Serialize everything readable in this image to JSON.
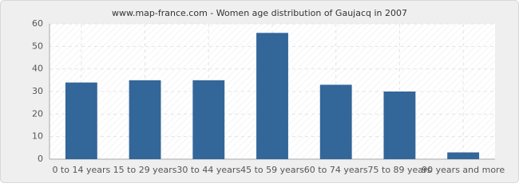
{
  "chart_data": {
    "type": "bar",
    "title": "www.map-france.com - Women age distribution of Gaujacq in 2007",
    "categories": [
      "0 to 14 years",
      "15 to 29 years",
      "30 to 44 years",
      "45 to 59 years",
      "60 to 74 years",
      "75 to 89 years",
      "90 years and more"
    ],
    "values": [
      34,
      35,
      35,
      56,
      33,
      30,
      3
    ],
    "color": "#336699",
    "ylim": [
      0,
      60
    ],
    "yticks": [
      0,
      10,
      20,
      30,
      40,
      50,
      60
    ],
    "grid": true
  }
}
